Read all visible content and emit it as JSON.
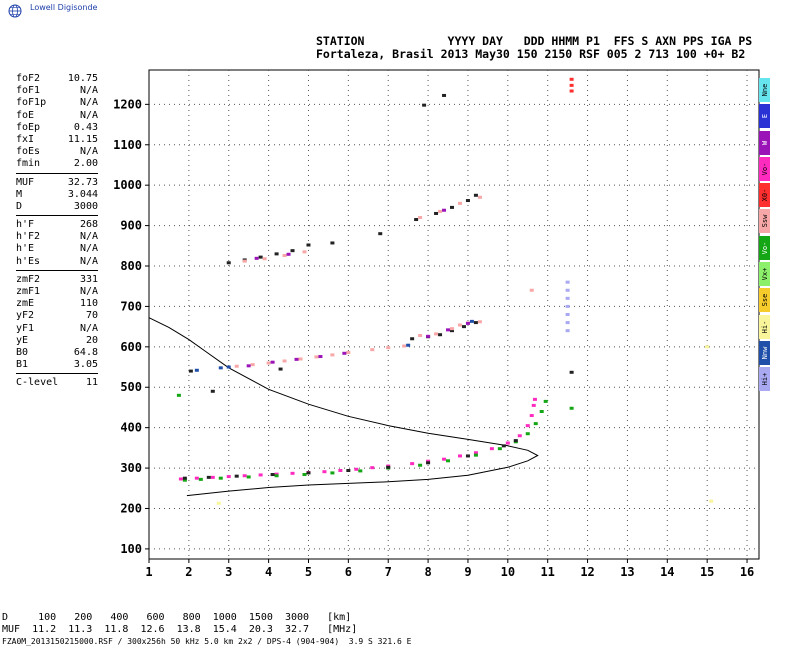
{
  "brand": {
    "text": "Lowell Digisonde"
  },
  "header": {
    "line1": "STATION            YYYY DAY   DDD HHMM P1  FFS S AXN PPS IGA PS",
    "line2": "Fortaleza, Brasil 2013 May30 150 2150 RSF 005 2 713 100 +0+ B2"
  },
  "params": [
    {
      "label": "foF2",
      "value": "10.75"
    },
    {
      "label": "foF1",
      "value": "N/A"
    },
    {
      "label": "foF1p",
      "value": "N/A"
    },
    {
      "label": "foE",
      "value": "N/A"
    },
    {
      "label": "foEp",
      "value": "0.43"
    },
    {
      "label": "fxI",
      "value": "11.15"
    },
    {
      "label": "foEs",
      "value": "N/A"
    },
    {
      "label": "fmin",
      "value": "2.00"
    },
    {
      "label": "MUF",
      "value": "32.73",
      "sep": true
    },
    {
      "label": "M",
      "value": "3.044"
    },
    {
      "label": "D",
      "value": "3000"
    },
    {
      "label": "h'F",
      "value": "268",
      "sep": true
    },
    {
      "label": "h'F2",
      "value": "N/A"
    },
    {
      "label": "h'E",
      "value": "N/A"
    },
    {
      "label": "h'Es",
      "value": "N/A"
    },
    {
      "label": "zmF2",
      "value": "331",
      "sep": true
    },
    {
      "label": "zmF1",
      "value": "N/A"
    },
    {
      "label": "zmE",
      "value": "110"
    },
    {
      "label": "yF2",
      "value": "70"
    },
    {
      "label": "yF1",
      "value": "N/A"
    },
    {
      "label": "yE",
      "value": "20"
    },
    {
      "label": "B0",
      "value": "64.8"
    },
    {
      "label": "B1",
      "value": "3.05"
    },
    {
      "label": "C-level",
      "value": "11",
      "sep": true
    }
  ],
  "legend": [
    {
      "label": "Nne",
      "color": "#66e5ef"
    },
    {
      "label": "E",
      "color": "#2a32d6"
    },
    {
      "label": "W",
      "color": "#9a14b8"
    },
    {
      "label": "Vo-",
      "color": "#ff2bbf"
    },
    {
      "label": "X0-",
      "color": "#ff2f2f"
    },
    {
      "label": "Ssw",
      "color": "#f7a7a7"
    },
    {
      "label": "Vo-",
      "color": "#14a614"
    },
    {
      "label": "Vx+",
      "color": "#8cf06a"
    },
    {
      "label": "Sse",
      "color": "#f6cc2c"
    },
    {
      "label": "Hi-",
      "color": "#f8f59a"
    },
    {
      "label": "Nnw",
      "color": "#1f4fa8"
    },
    {
      "label": "Hi+",
      "color": "#a9a9f2"
    }
  ],
  "muf_table": {
    "line1": "D     100   200   400   600   800  1000  1500  3000   [km]",
    "line2": "MUF  11.2  11.3  11.8  12.6  13.8  15.4  20.3  32.7   [MHz]"
  },
  "footer": {
    "text": "FZA0M_2013150215000.RSF / 300x256h 50 kHz 5.0 km 2x2 / DPS-4 (904-904)  3.9 S 321.6 E"
  },
  "chart_data": {
    "type": "scatter",
    "title": "",
    "xlabel": "",
    "ylabel": "",
    "x_ticks": [
      "1",
      "2",
      "3",
      "4",
      "5",
      "6",
      "7",
      "8",
      "9",
      "10",
      "11",
      "12",
      "13",
      "14",
      "15",
      "16"
    ],
    "y_ticks": [
      "100",
      "200",
      "300",
      "400",
      "500",
      "600",
      "700",
      "800",
      "900",
      "1000",
      "1100",
      "1200"
    ],
    "xlim": [
      1,
      16.3
    ],
    "ylim": [
      75,
      1285
    ],
    "grid": true,
    "series": [
      {
        "color": "#ff2bbf",
        "points": [
          [
            1.8,
            273
          ],
          [
            2.2,
            275
          ],
          [
            2.6,
            277
          ],
          [
            3.0,
            279
          ],
          [
            3.4,
            281
          ],
          [
            3.8,
            283
          ],
          [
            4.2,
            285
          ],
          [
            4.6,
            287
          ],
          [
            5.0,
            289
          ],
          [
            5.4,
            291
          ],
          [
            5.8,
            294
          ],
          [
            6.2,
            297
          ],
          [
            6.6,
            301
          ],
          [
            7.0,
            305
          ],
          [
            7.6,
            311
          ],
          [
            8.0,
            317
          ],
          [
            8.4,
            322
          ],
          [
            8.8,
            330
          ],
          [
            9.2,
            338
          ],
          [
            9.6,
            348
          ],
          [
            10.0,
            362
          ],
          [
            10.3,
            380
          ],
          [
            10.5,
            405
          ],
          [
            10.6,
            430
          ],
          [
            10.65,
            455
          ],
          [
            10.68,
            470
          ]
        ]
      },
      {
        "color": "#14a614",
        "points": [
          [
            1.9,
            270
          ],
          [
            2.3,
            272
          ],
          [
            2.8,
            275
          ],
          [
            3.5,
            278
          ],
          [
            4.2,
            281
          ],
          [
            4.9,
            284
          ],
          [
            5.6,
            288
          ],
          [
            6.3,
            293
          ],
          [
            7.0,
            300
          ],
          [
            7.8,
            307
          ],
          [
            8.5,
            318
          ],
          [
            9.2,
            332
          ],
          [
            9.8,
            348
          ],
          [
            10.2,
            365
          ],
          [
            10.5,
            385
          ],
          [
            10.7,
            410
          ],
          [
            10.85,
            440
          ],
          [
            10.95,
            465
          ],
          [
            11.6,
            448
          ],
          [
            1.75,
            480
          ]
        ]
      },
      {
        "color": "#222222",
        "points": [
          [
            1.9,
            275
          ],
          [
            2.5,
            277
          ],
          [
            3.2,
            280
          ],
          [
            4.1,
            284
          ],
          [
            5.0,
            288
          ],
          [
            6.0,
            294
          ],
          [
            7.0,
            302
          ],
          [
            8.0,
            313
          ],
          [
            9.0,
            330
          ],
          [
            9.9,
            355
          ],
          [
            10.2,
            368
          ],
          [
            2.05,
            540
          ],
          [
            2.6,
            490
          ],
          [
            4.3,
            545
          ],
          [
            5.0,
            852
          ],
          [
            5.6,
            857
          ],
          [
            6.8,
            880
          ],
          [
            7.6,
            620
          ],
          [
            8.0,
            625
          ],
          [
            8.3,
            630
          ],
          [
            8.6,
            640
          ],
          [
            8.9,
            650
          ],
          [
            9.2,
            660
          ],
          [
            7.7,
            915
          ],
          [
            8.2,
            930
          ],
          [
            8.6,
            945
          ],
          [
            9.0,
            962
          ],
          [
            9.2,
            975
          ],
          [
            7.9,
            1198
          ],
          [
            8.4,
            1222
          ],
          [
            3.0,
            808
          ],
          [
            3.4,
            815
          ],
          [
            3.8,
            822
          ],
          [
            4.2,
            830
          ],
          [
            4.6,
            838
          ],
          [
            11.6,
            537
          ]
        ]
      },
      {
        "color": "#ff2f2f",
        "points": [
          [
            11.6,
            1262
          ],
          [
            11.6,
            1247
          ],
          [
            11.6,
            1233
          ]
        ]
      },
      {
        "color": "#f7a7a7",
        "points": [
          [
            3.2,
            552
          ],
          [
            3.6,
            556
          ],
          [
            4.0,
            560
          ],
          [
            4.4,
            565
          ],
          [
            4.8,
            570
          ],
          [
            5.2,
            575
          ],
          [
            5.6,
            580
          ],
          [
            6.0,
            586
          ],
          [
            6.6,
            593
          ],
          [
            7.0,
            598
          ],
          [
            7.4,
            602
          ],
          [
            7.8,
            628
          ],
          [
            8.2,
            632
          ],
          [
            8.6,
            645
          ],
          [
            8.8,
            654
          ],
          [
            9.0,
            659
          ],
          [
            9.3,
            662
          ],
          [
            10.6,
            740
          ],
          [
            3.4,
            812
          ],
          [
            3.9,
            818
          ],
          [
            4.4,
            826
          ],
          [
            4.9,
            835
          ],
          [
            7.8,
            920
          ],
          [
            8.3,
            935
          ],
          [
            8.8,
            955
          ],
          [
            9.3,
            970
          ]
        ]
      },
      {
        "color": "#9a14b8",
        "points": [
          [
            3.5,
            553
          ],
          [
            4.1,
            562
          ],
          [
            4.7,
            569
          ],
          [
            5.3,
            576
          ],
          [
            5.9,
            584
          ],
          [
            8.0,
            626
          ],
          [
            8.5,
            642
          ],
          [
            9.0,
            658
          ],
          [
            3.7,
            819
          ],
          [
            4.5,
            829
          ],
          [
            8.4,
            938
          ]
        ]
      },
      {
        "color": "#1f4fa8",
        "points": [
          [
            2.2,
            542
          ],
          [
            2.8,
            548
          ],
          [
            3.0,
            550
          ],
          [
            7.5,
            604
          ],
          [
            9.1,
            663
          ]
        ]
      },
      {
        "color": "#a9a9f2",
        "points": [
          [
            11.5,
            760
          ],
          [
            11.5,
            740
          ],
          [
            11.5,
            720
          ],
          [
            11.5,
            700
          ],
          [
            11.5,
            680
          ],
          [
            11.5,
            660
          ],
          [
            11.5,
            640
          ]
        ]
      },
      {
        "color": "#f8f59a",
        "points": [
          [
            2.75,
            213
          ],
          [
            15.1,
            218
          ],
          [
            15.0,
            600
          ]
        ]
      }
    ],
    "profile": [
      [
        1.95,
        232
      ],
      [
        3,
        243
      ],
      [
        4,
        252
      ],
      [
        5,
        258
      ],
      [
        6,
        262
      ],
      [
        7,
        266
      ],
      [
        8,
        272
      ],
      [
        9,
        282
      ],
      [
        10,
        302
      ],
      [
        10.5,
        318
      ],
      [
        10.75,
        331
      ],
      [
        10.5,
        344
      ],
      [
        10,
        355
      ],
      [
        9,
        371
      ],
      [
        8,
        386
      ],
      [
        7,
        405
      ],
      [
        6,
        428
      ],
      [
        5,
        458
      ],
      [
        4,
        495
      ],
      [
        3,
        548
      ],
      [
        2.4,
        590
      ],
      [
        2,
        618
      ],
      [
        1.5,
        648
      ],
      [
        1,
        672
      ]
    ]
  }
}
